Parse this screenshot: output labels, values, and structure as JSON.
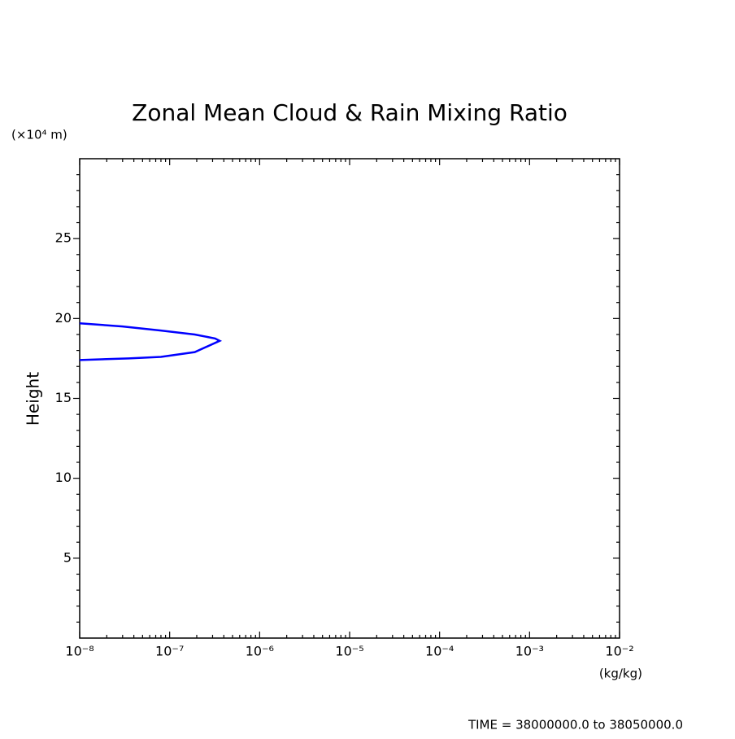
{
  "chart_data": {
    "type": "line",
    "title": "Zonal Mean Cloud & Rain Mixing Ratio",
    "y_unit": "(×10⁴ m)",
    "y_label": "Height",
    "x_unit": "(kg/kg)",
    "footer": "TIME = 38000000.0 to 38050000.0",
    "x": [
      1e-08,
      3e-08,
      8e-08,
      1.9e-07,
      3.2e-07,
      3.6e-07,
      1.9e-07,
      8e-08,
      3.5e-08,
      1e-08
    ],
    "values": [
      19.7,
      19.5,
      19.25,
      19.0,
      18.75,
      18.6,
      17.9,
      17.6,
      17.5,
      17.4
    ],
    "color": "#0000ff",
    "xlog": true,
    "xlim": [
      1e-08,
      0.01
    ],
    "ylim": [
      0,
      30
    ],
    "xticks": [
      {
        "value": 1e-08,
        "label": "10⁻⁸"
      },
      {
        "value": 1e-07,
        "label": "10⁻⁷"
      },
      {
        "value": 1e-06,
        "label": "10⁻⁶"
      },
      {
        "value": 1e-05,
        "label": "10⁻⁵"
      },
      {
        "value": 0.0001,
        "label": "10⁻⁴"
      },
      {
        "value": 0.001,
        "label": "10⁻³"
      },
      {
        "value": 0.01,
        "label": "10⁻²"
      }
    ],
    "yticks": [
      5,
      10,
      15,
      20,
      25
    ],
    "xminorticks": [
      2e-08,
      3e-08,
      4e-08,
      5e-08,
      6e-08,
      7e-08,
      8e-08,
      9e-08,
      2e-07,
      3e-07,
      4e-07,
      5e-07,
      6e-07,
      7e-07,
      8e-07,
      9e-07,
      2e-06,
      3e-06,
      4e-06,
      5e-06,
      6e-06,
      7e-06,
      8e-06,
      9e-06,
      2e-05,
      3e-05,
      4e-05,
      5e-05,
      6e-05,
      7e-05,
      8e-05,
      9e-05,
      0.0002,
      0.0003,
      0.0004,
      0.0005,
      0.0006,
      0.0007,
      0.0008,
      0.0009,
      0.002,
      0.003,
      0.004,
      0.005,
      0.006,
      0.007,
      0.008,
      0.009
    ],
    "yminorticks": [
      1,
      2,
      3,
      4,
      6,
      7,
      8,
      9,
      11,
      12,
      13,
      14,
      16,
      17,
      18,
      19,
      21,
      22,
      23,
      24,
      26,
      27,
      28,
      29
    ]
  }
}
